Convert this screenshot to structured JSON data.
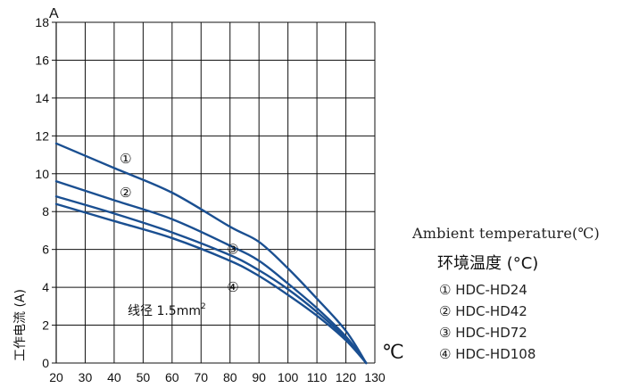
{
  "chart_data": {
    "type": "line",
    "y_unit_label": "A",
    "x_unit_label": "℃",
    "ylabel": "工作电流 (A)",
    "xlim": [
      20,
      130
    ],
    "ylim": [
      0,
      18
    ],
    "x_ticks": [
      20,
      30,
      40,
      50,
      60,
      70,
      80,
      90,
      100,
      110,
      120,
      130
    ],
    "y_ticks": [
      0,
      2,
      4,
      6,
      8,
      10,
      12,
      14,
      16,
      18
    ],
    "grid": true,
    "annotation": {
      "text": "线径 1.5mm",
      "superscript": "2"
    },
    "series": [
      {
        "name": "①",
        "x": [
          20,
          40,
          60,
          80,
          90,
          100,
          110,
          120,
          127
        ],
        "values": [
          11.6,
          10.3,
          9.0,
          7.2,
          6.4,
          5.0,
          3.4,
          1.7,
          0.0
        ]
      },
      {
        "name": "②",
        "x": [
          20,
          40,
          60,
          80,
          90,
          100,
          110,
          120,
          127
        ],
        "values": [
          9.6,
          8.6,
          7.6,
          6.2,
          5.4,
          4.2,
          2.9,
          1.4,
          0.0
        ]
      },
      {
        "name": "③",
        "x": [
          20,
          40,
          60,
          80,
          90,
          100,
          110,
          120,
          127
        ],
        "values": [
          8.8,
          7.9,
          6.9,
          5.7,
          4.9,
          3.9,
          2.7,
          1.3,
          0.0
        ]
      },
      {
        "name": "④",
        "x": [
          20,
          40,
          60,
          80,
          90,
          100,
          110,
          120,
          127
        ],
        "values": [
          8.4,
          7.5,
          6.6,
          5.4,
          4.6,
          3.6,
          2.5,
          1.2,
          0.0
        ]
      }
    ],
    "series_labels": [
      {
        "text": "①",
        "x": 44,
        "y": 10.8
      },
      {
        "text": "②",
        "x": 44,
        "y": 9.0
      },
      {
        "text": "③",
        "x": 81,
        "y": 6.0
      },
      {
        "text": "④",
        "x": 81,
        "y": 4.0
      }
    ],
    "line_color": "#1a4f91",
    "grid_color": "#111111"
  },
  "legend": {
    "title_en": "Ambient temperature(℃)",
    "title_cn": "环境温度 (°C)",
    "items": [
      "① HDC-HD24",
      "② HDC-HD42",
      "③ HDC-HD72",
      "④ HDC-HD108"
    ]
  }
}
